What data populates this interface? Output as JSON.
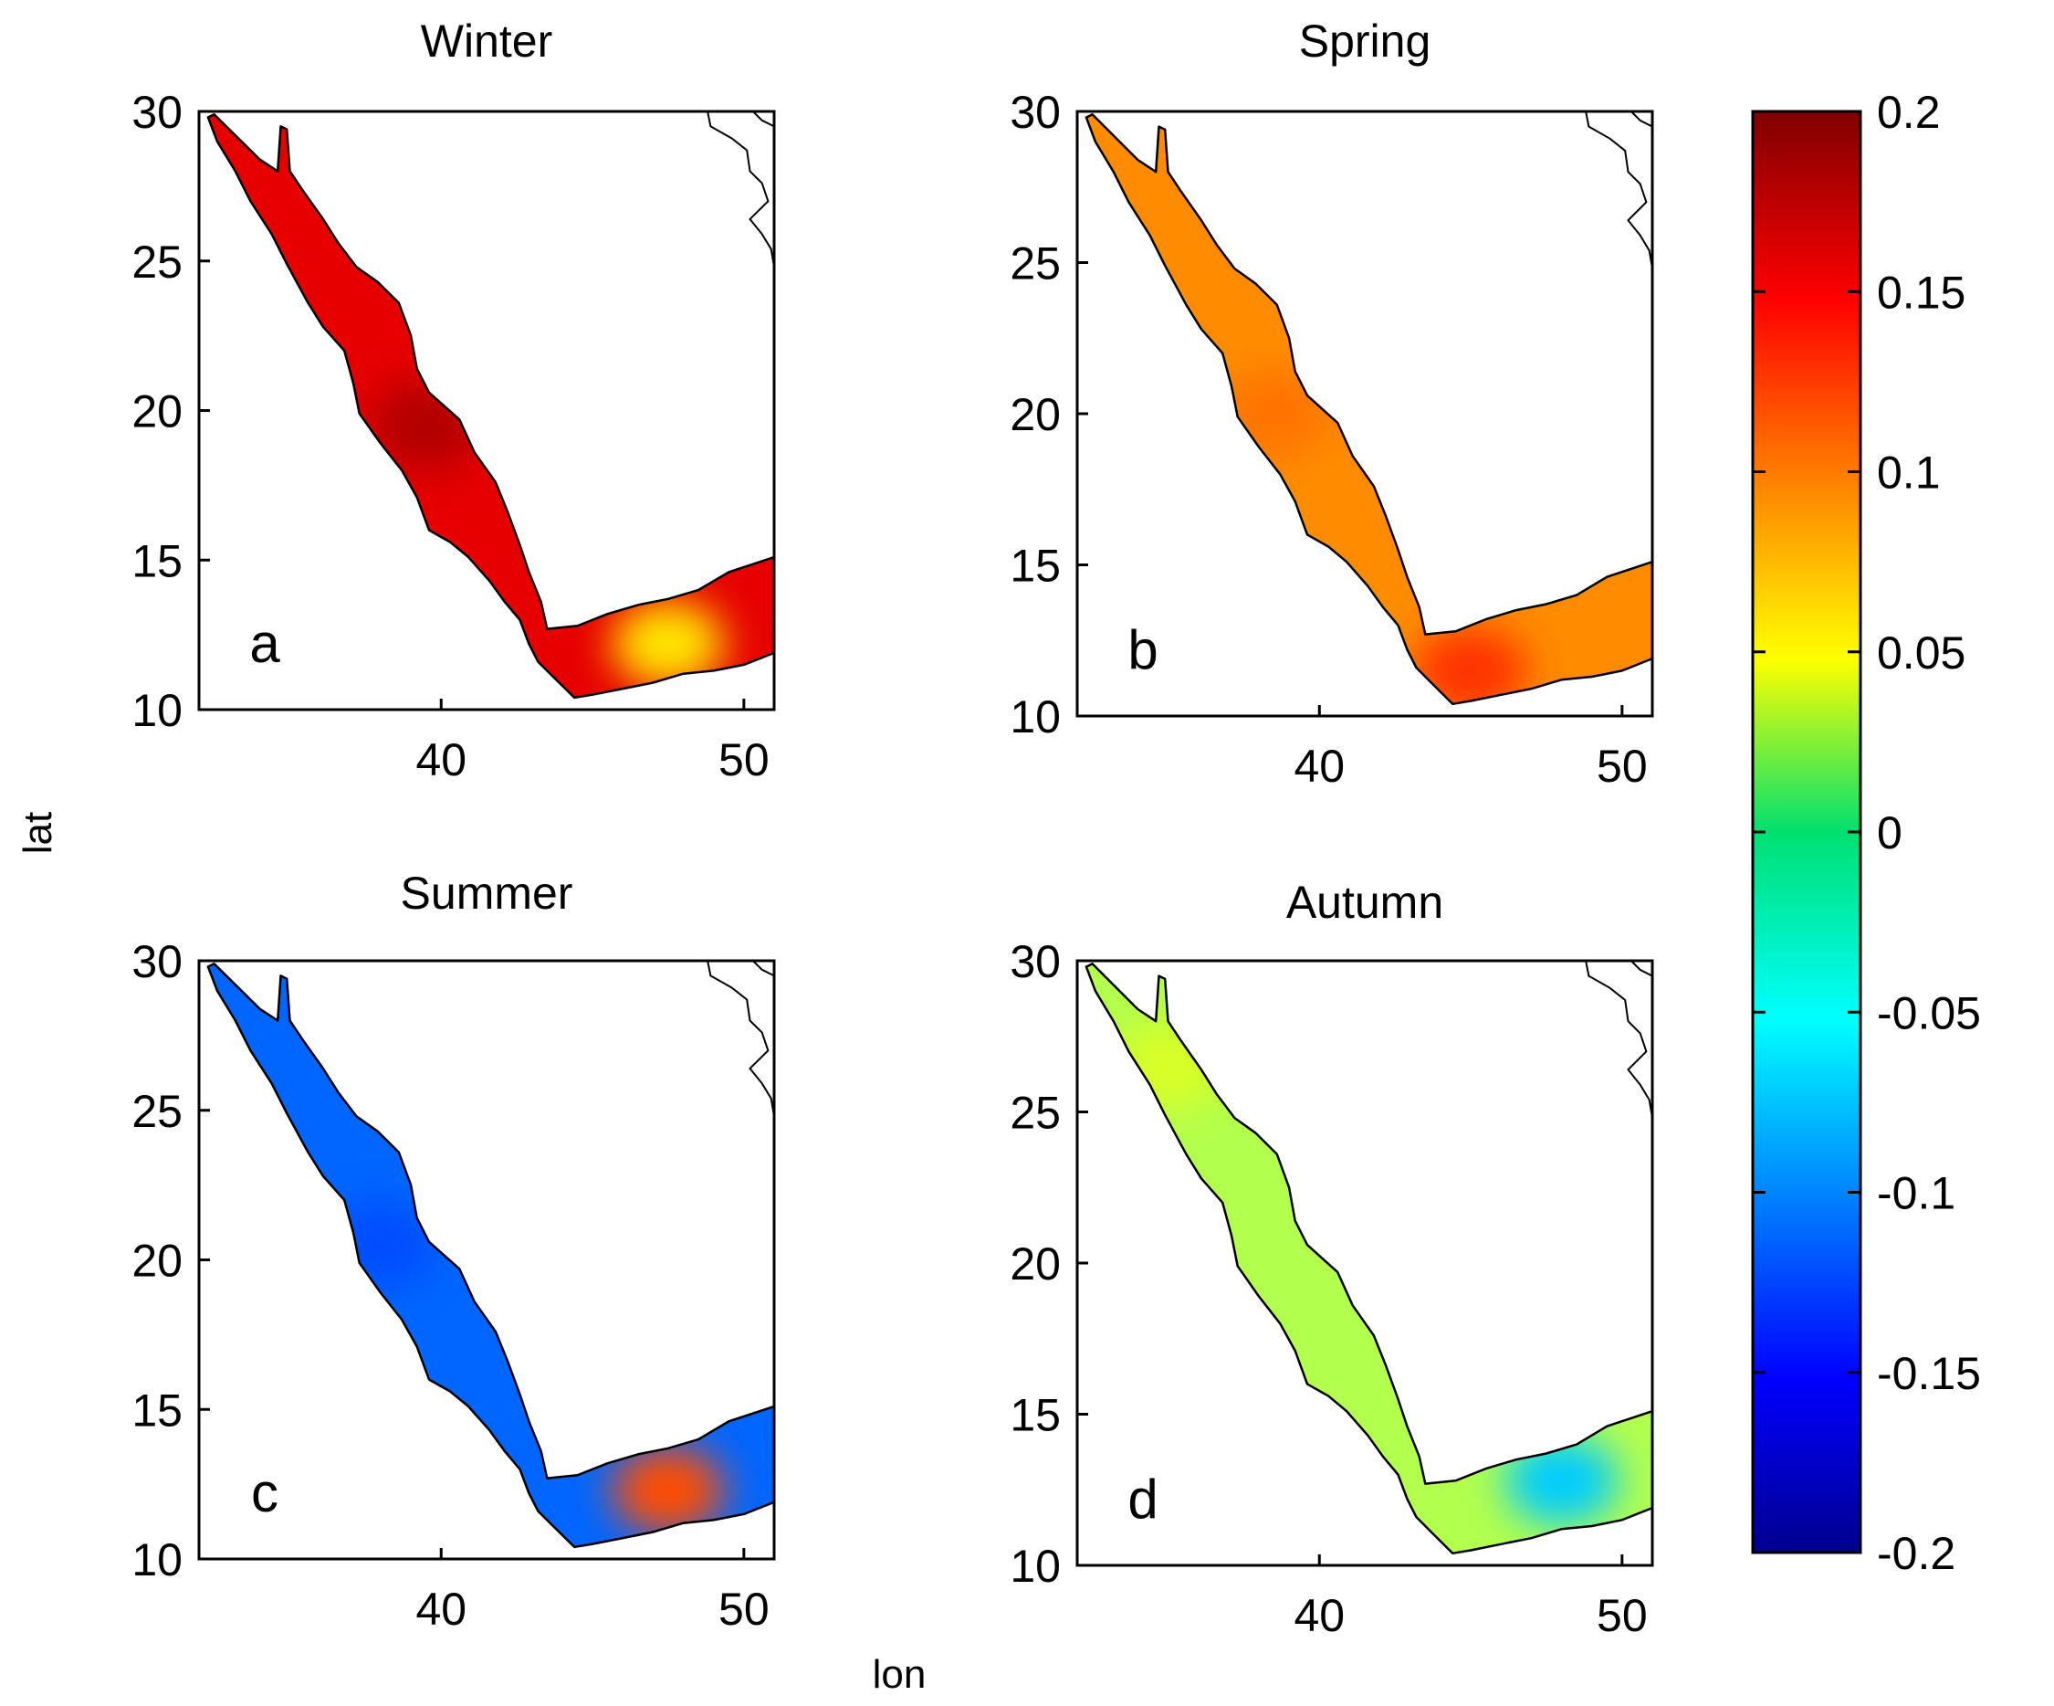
{
  "figure": {
    "xlabel": "lon",
    "ylabel": "lat"
  },
  "chart_data": {
    "type": "heatmap",
    "xlim": [
      32,
      51
    ],
    "ylim": [
      10,
      30
    ],
    "xticks": [
      40,
      50
    ],
    "yticks": [
      10,
      15,
      20,
      25,
      30
    ],
    "xlabel": "lon",
    "ylabel": "lat",
    "colorbar": {
      "range": [
        -0.2,
        0.2
      ],
      "ticks": [
        "0.2",
        "0.15",
        "0.1",
        "0.05",
        "0",
        "-0.05",
        "-0.1",
        "-0.15",
        "-0.2"
      ],
      "colormap": "jet"
    },
    "panels": [
      {
        "title": "Winter",
        "letter": "a",
        "mean_value": 0.16,
        "features": [
          {
            "lon": 39.5,
            "lat": 19.5,
            "value": 0.18
          },
          {
            "lon": 47.5,
            "lat": 12.2,
            "value": 0.06
          }
        ]
      },
      {
        "title": "Spring",
        "letter": "b",
        "mean_value": 0.095,
        "features": [
          {
            "lon": 38.5,
            "lat": 20.0,
            "value": 0.105
          },
          {
            "lon": 45.0,
            "lat": 11.5,
            "value": 0.13
          }
        ]
      },
      {
        "title": "Summer",
        "letter": "c",
        "mean_value": -0.11,
        "features": [
          {
            "lon": 38.0,
            "lat": 20.5,
            "value": -0.12
          },
          {
            "lon": 47.5,
            "lat": 12.3,
            "value": 0.12
          }
        ]
      },
      {
        "title": "Autumn",
        "letter": "d",
        "mean_value": 0.02,
        "features": [
          {
            "lon": 35.0,
            "lat": 26.5,
            "value": 0.035
          },
          {
            "lon": 48.0,
            "lat": 12.8,
            "value": -0.07
          }
        ]
      }
    ]
  }
}
